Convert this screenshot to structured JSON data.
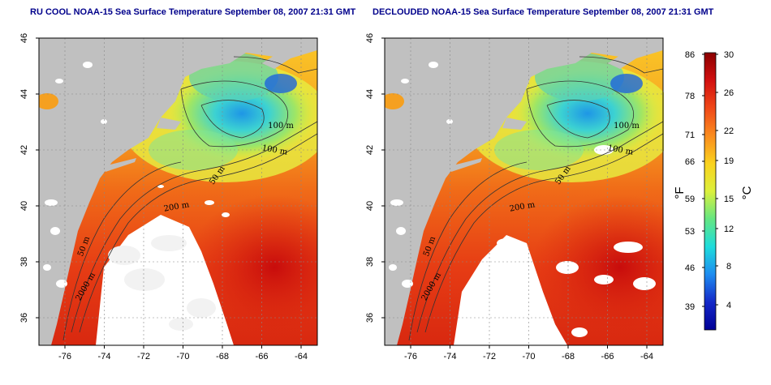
{
  "panels": [
    {
      "id": "left",
      "title": "RU COOL NOAA-15 Sea Surface Temperature September 08, 2007 21:31 GMT",
      "clouds": "heavy"
    },
    {
      "id": "right",
      "title": "DECLOUDED NOAA-15 Sea Surface Temperature September 08, 2007 21:31 GMT",
      "clouds": "light"
    }
  ],
  "map": {
    "x_ticks": [
      "-76",
      "-74",
      "-72",
      "-70",
      "-68",
      "-66",
      "-64"
    ],
    "y_ticks": [
      "46",
      "44",
      "42",
      "40",
      "38",
      "36"
    ],
    "contour_labels": [
      "100 m",
      "100 m",
      "50 m",
      "200 m",
      "50 m",
      "2000 m"
    ]
  },
  "colorbar": {
    "f_ticks": [
      "86",
      "78",
      "71",
      "66",
      "59",
      "53",
      "46",
      "39"
    ],
    "c_ticks": [
      "30",
      "26",
      "22",
      "19",
      "15",
      "12",
      "8",
      "4"
    ],
    "f_unit": "°F",
    "c_unit": "°C",
    "colors": [
      "#8b0000",
      "#d21010",
      "#f04818",
      "#fa8c1e",
      "#fad21e",
      "#dcf03c",
      "#64e682",
      "#1edcdc",
      "#1e8cf0",
      "#1428c8",
      "#000096"
    ]
  },
  "colors": {
    "land": "#c0c0c0",
    "cloud": "#ffffff",
    "title": "#00008b"
  }
}
